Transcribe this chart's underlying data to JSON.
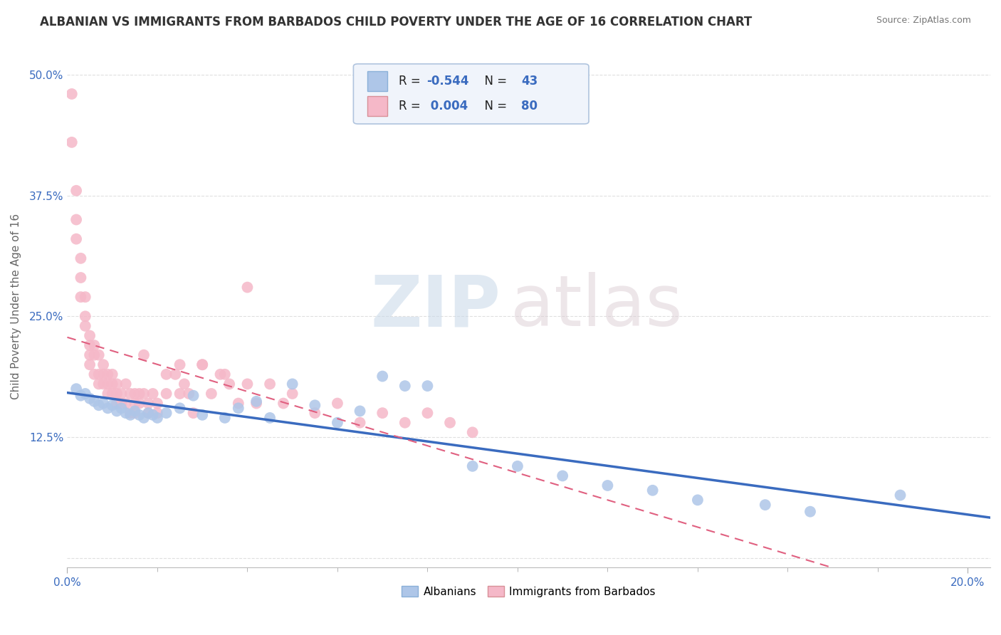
{
  "title": "ALBANIAN VS IMMIGRANTS FROM BARBADOS CHILD POVERTY UNDER THE AGE OF 16 CORRELATION CHART",
  "source": "Source: ZipAtlas.com",
  "ylabel": "Child Poverty Under the Age of 16",
  "xlabel": "",
  "xlim": [
    0.0,
    0.205
  ],
  "ylim": [
    -0.01,
    0.53
  ],
  "yticks": [
    0.0,
    0.125,
    0.25,
    0.375,
    0.5
  ],
  "ytick_labels": [
    "",
    "12.5%",
    "25.0%",
    "37.5%",
    "50.0%"
  ],
  "xticks": [
    0.0,
    0.2
  ],
  "xtick_labels": [
    "0.0%",
    "20.0%"
  ],
  "background_color": "#ffffff",
  "grid_color": "#e0e0e0",
  "albanians_color": "#aec6e8",
  "barbados_color": "#f5b8c8",
  "albanians_line_color": "#3a6bbf",
  "barbados_line_color": "#e06080",
  "R_albanians": -0.544,
  "N_albanians": 43,
  "R_barbados": 0.004,
  "N_barbados": 80,
  "albanians_x": [
    0.002,
    0.003,
    0.004,
    0.005,
    0.006,
    0.007,
    0.008,
    0.009,
    0.01,
    0.011,
    0.012,
    0.013,
    0.014,
    0.015,
    0.016,
    0.017,
    0.018,
    0.019,
    0.02,
    0.022,
    0.025,
    0.028,
    0.03,
    0.035,
    0.038,
    0.042,
    0.045,
    0.05,
    0.055,
    0.06,
    0.065,
    0.07,
    0.075,
    0.08,
    0.09,
    0.1,
    0.11,
    0.12,
    0.13,
    0.14,
    0.155,
    0.165,
    0.185
  ],
  "albanians_y": [
    0.175,
    0.168,
    0.17,
    0.165,
    0.162,
    0.158,
    0.16,
    0.155,
    0.158,
    0.152,
    0.155,
    0.15,
    0.148,
    0.152,
    0.148,
    0.145,
    0.15,
    0.148,
    0.145,
    0.15,
    0.155,
    0.168,
    0.148,
    0.145,
    0.155,
    0.162,
    0.145,
    0.18,
    0.158,
    0.14,
    0.152,
    0.188,
    0.178,
    0.178,
    0.095,
    0.095,
    0.085,
    0.075,
    0.07,
    0.06,
    0.055,
    0.048,
    0.065
  ],
  "barbados_x": [
    0.001,
    0.001,
    0.002,
    0.002,
    0.002,
    0.003,
    0.003,
    0.003,
    0.004,
    0.004,
    0.004,
    0.005,
    0.005,
    0.005,
    0.005,
    0.006,
    0.006,
    0.006,
    0.007,
    0.007,
    0.007,
    0.008,
    0.008,
    0.008,
    0.009,
    0.009,
    0.009,
    0.01,
    0.01,
    0.01,
    0.011,
    0.011,
    0.011,
    0.012,
    0.012,
    0.013,
    0.013,
    0.014,
    0.014,
    0.015,
    0.015,
    0.015,
    0.016,
    0.016,
    0.017,
    0.017,
    0.018,
    0.018,
    0.019,
    0.02,
    0.02,
    0.022,
    0.022,
    0.024,
    0.025,
    0.026,
    0.027,
    0.028,
    0.03,
    0.032,
    0.034,
    0.036,
    0.038,
    0.04,
    0.042,
    0.045,
    0.048,
    0.05,
    0.055,
    0.06,
    0.065,
    0.07,
    0.075,
    0.08,
    0.085,
    0.09,
    0.04,
    0.025,
    0.03,
    0.035
  ],
  "barbados_y": [
    0.48,
    0.43,
    0.38,
    0.35,
    0.33,
    0.31,
    0.29,
    0.27,
    0.27,
    0.25,
    0.24,
    0.23,
    0.22,
    0.21,
    0.2,
    0.22,
    0.21,
    0.19,
    0.21,
    0.19,
    0.18,
    0.2,
    0.19,
    0.18,
    0.19,
    0.18,
    0.17,
    0.19,
    0.18,
    0.17,
    0.18,
    0.17,
    0.16,
    0.17,
    0.16,
    0.18,
    0.16,
    0.17,
    0.15,
    0.17,
    0.16,
    0.15,
    0.17,
    0.16,
    0.21,
    0.17,
    0.16,
    0.15,
    0.17,
    0.16,
    0.15,
    0.19,
    0.17,
    0.19,
    0.17,
    0.18,
    0.17,
    0.15,
    0.2,
    0.17,
    0.19,
    0.18,
    0.16,
    0.18,
    0.16,
    0.18,
    0.16,
    0.17,
    0.15,
    0.16,
    0.14,
    0.15,
    0.14,
    0.15,
    0.14,
    0.13,
    0.28,
    0.2,
    0.2,
    0.19
  ],
  "watermark_zip": "ZIP",
  "watermark_atlas": "atlas",
  "title_fontsize": 12,
  "source_fontsize": 9,
  "tick_fontsize": 11,
  "label_fontsize": 11
}
